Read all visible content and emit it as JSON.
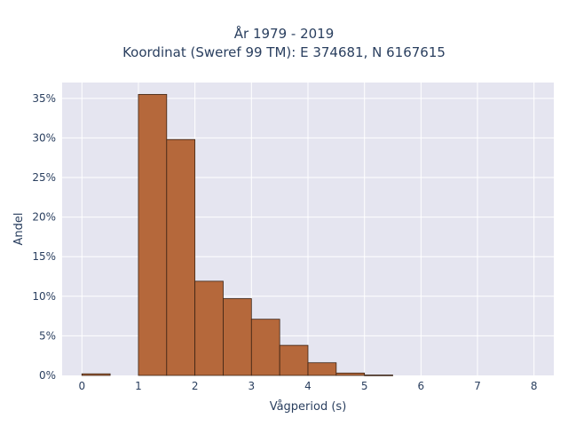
{
  "chart_data": {
    "type": "bar",
    "title": "År 1979 - 2019",
    "subtitle": "Koordinat (Sweref 99 TM): E 374681, N 6167615",
    "xlabel": "Vågperiod (s)",
    "ylabel": "Andel",
    "xlim": [
      -0.35,
      8.35
    ],
    "ylim": [
      0,
      0.37
    ],
    "x_ticks": [
      0,
      1,
      2,
      3,
      4,
      5,
      6,
      7,
      8
    ],
    "y_ticks": [
      0,
      0.05,
      0.1,
      0.15,
      0.2,
      0.25,
      0.3,
      0.35
    ],
    "y_tick_labels": [
      "0%",
      "5%",
      "10%",
      "15%",
      "20%",
      "25%",
      "30%",
      "35%"
    ],
    "bin_width": 0.5,
    "bins": [
      {
        "start": 0.0,
        "value": 0.002
      },
      {
        "start": 0.5,
        "value": 0.0
      },
      {
        "start": 1.0,
        "value": 0.355
      },
      {
        "start": 1.5,
        "value": 0.298
      },
      {
        "start": 2.0,
        "value": 0.119
      },
      {
        "start": 2.5,
        "value": 0.097
      },
      {
        "start": 3.0,
        "value": 0.071
      },
      {
        "start": 3.5,
        "value": 0.038
      },
      {
        "start": 4.0,
        "value": 0.016
      },
      {
        "start": 4.5,
        "value": 0.003
      },
      {
        "start": 5.0,
        "value": 0.0005
      }
    ],
    "grid": true,
    "colors": {
      "bar_fill": "#b5683b",
      "bar_stroke": "#3b2314",
      "plot_bg": "#e5e5f0",
      "grid": "#ffffff",
      "text": "#2a3f5f"
    }
  }
}
